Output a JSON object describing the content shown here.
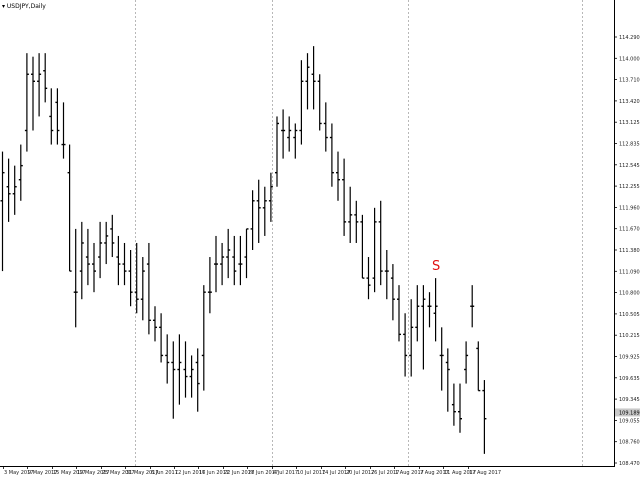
{
  "window": {
    "symbol_label": "▾ USDJPY,Daily"
  },
  "colors": {
    "background": "#ffffff",
    "bars": "#000000",
    "grid": "#b8b8b8",
    "annotation": "#e01010",
    "axis_text": "#222222",
    "price_tag_bg": "#c8c8c8"
  },
  "chart_data": {
    "type": "ohlc",
    "symbol": "USDJPY",
    "timeframe": "Daily",
    "ylim": [
      108.47,
      114.53
    ],
    "price_ticks": [
      "114.290",
      "114.000",
      "113.710",
      "113.420",
      "113.125",
      "112.835",
      "112.545",
      "112.255",
      "111.960",
      "111.670",
      "111.380",
      "111.090",
      "110.800",
      "110.505",
      "110.215",
      "109.925",
      "109.635",
      "109.345",
      "109.055",
      "108.760",
      "108.470"
    ],
    "current_price": "109.189",
    "date_ticks": [
      "3 May 2017",
      "9 May 2017",
      "15 May 2017",
      "19 May 2017",
      "25 May 2017",
      "31 May 2017",
      "6 Jun 2017",
      "12 Jun 2017",
      "16 Jun 2017",
      "22 Jun 2017",
      "28 Jun 2017",
      "4 Jul 2017",
      "10 Jul 2017",
      "14 Jul 2017",
      "20 Jul 2017",
      "26 Jul 2017",
      "1 Aug 2017",
      "7 Aug 2017",
      "11 Aug 2017",
      "17 Aug 2017"
    ],
    "grid": "vertical-dashed",
    "annotation": {
      "text": "S",
      "date": "8 Aug 2017"
    },
    "series": [
      {
        "date": "1 May 2017",
        "open": 112.2,
        "high": 112.9,
        "low": 111.2,
        "close": 112.6
      },
      {
        "date": "2 May 2017",
        "open": 112.4,
        "high": 112.8,
        "low": 111.9,
        "close": 112.3
      },
      {
        "date": "3 May 2017",
        "open": 112.3,
        "high": 112.7,
        "low": 112.0,
        "close": 112.4
      },
      {
        "date": "4 May 2017",
        "open": 112.5,
        "high": 113.0,
        "low": 112.2,
        "close": 112.7
      },
      {
        "date": "5 May 2017",
        "open": 113.2,
        "high": 114.3,
        "low": 112.9,
        "close": 114.0
      },
      {
        "date": "8 May 2017",
        "open": 114.0,
        "high": 114.25,
        "low": 113.2,
        "close": 113.9
      },
      {
        "date": "9 May 2017",
        "open": 113.9,
        "high": 114.3,
        "low": 113.4,
        "close": 114.0
      },
      {
        "date": "10 May 2017",
        "open": 114.05,
        "high": 114.3,
        "low": 113.6,
        "close": 113.8
      },
      {
        "date": "11 May 2017",
        "open": 113.4,
        "high": 113.8,
        "low": 113.0,
        "close": 113.2
      },
      {
        "date": "12 May 2017",
        "open": 113.6,
        "high": 113.8,
        "low": 113.0,
        "close": 113.2
      },
      {
        "date": "15 May 2017",
        "open": 113.0,
        "high": 113.6,
        "low": 112.8,
        "close": 113.0
      },
      {
        "date": "16 May 2017",
        "open": 112.6,
        "high": 113.0,
        "low": 111.2,
        "close": 111.2
      },
      {
        "date": "17 May 2017",
        "open": 110.9,
        "high": 111.8,
        "low": 110.4,
        "close": 110.9
      },
      {
        "date": "18 May 2017",
        "open": 111.2,
        "high": 111.9,
        "low": 110.8,
        "close": 111.6
      },
      {
        "date": "19 May 2017",
        "open": 111.4,
        "high": 111.8,
        "low": 111.0,
        "close": 111.3
      },
      {
        "date": "22 May 2017",
        "open": 111.3,
        "high": 111.6,
        "low": 110.9,
        "close": 111.2
      },
      {
        "date": "23 May 2017",
        "open": 111.4,
        "high": 111.9,
        "low": 111.1,
        "close": 111.6
      },
      {
        "date": "24 May 2017",
        "open": 111.6,
        "high": 111.9,
        "low": 111.3,
        "close": 111.7
      },
      {
        "date": "25 May 2017",
        "open": 111.8,
        "high": 112.0,
        "low": 111.4,
        "close": 111.6
      },
      {
        "date": "26 May 2017",
        "open": 111.4,
        "high": 111.7,
        "low": 111.0,
        "close": 111.3
      },
      {
        "date": "29 May 2017",
        "open": 111.3,
        "high": 111.6,
        "low": 111.0,
        "close": 111.2
      },
      {
        "date": "30 May 2017",
        "open": 111.2,
        "high": 111.5,
        "low": 110.7,
        "close": 110.9
      },
      {
        "date": "31 May 2017",
        "open": 110.9,
        "high": 111.6,
        "low": 110.6,
        "close": 110.8
      },
      {
        "date": "1 Jun 2017",
        "open": 110.8,
        "high": 111.4,
        "low": 110.5,
        "close": 111.2
      },
      {
        "date": "2 Jun 2017",
        "open": 111.3,
        "high": 111.6,
        "low": 110.3,
        "close": 110.5
      },
      {
        "date": "5 Jun 2017",
        "open": 110.5,
        "high": 110.7,
        "low": 110.2,
        "close": 110.4
      },
      {
        "date": "6 Jun 2017",
        "open": 110.4,
        "high": 110.6,
        "low": 109.9,
        "close": 110.0
      },
      {
        "date": "7 Jun 2017",
        "open": 110.0,
        "high": 110.3,
        "low": 109.6,
        "close": 109.9
      },
      {
        "date": "8 Jun 2017",
        "open": 109.9,
        "high": 110.2,
        "low": 109.1,
        "close": 109.8
      },
      {
        "date": "9 Jun 2017",
        "open": 109.8,
        "high": 110.3,
        "low": 109.3,
        "close": 109.9
      },
      {
        "date": "12 Jun 2017",
        "open": 109.8,
        "high": 110.2,
        "low": 109.4,
        "close": 109.7
      },
      {
        "date": "13 Jun 2017",
        "open": 109.7,
        "high": 110.0,
        "low": 109.4,
        "close": 109.8
      },
      {
        "date": "14 Jun 2017",
        "open": 109.9,
        "high": 110.1,
        "low": 109.2,
        "close": 109.6
      },
      {
        "date": "15 Jun 2017",
        "open": 110.0,
        "high": 111.0,
        "low": 109.5,
        "close": 110.9
      },
      {
        "date": "16 Jun 2017",
        "open": 110.9,
        "high": 111.4,
        "low": 110.6,
        "close": 110.9
      },
      {
        "date": "19 Jun 2017",
        "open": 111.3,
        "high": 111.7,
        "low": 110.9,
        "close": 111.3
      },
      {
        "date": "20 Jun 2017",
        "open": 111.3,
        "high": 111.6,
        "low": 111.0,
        "close": 111.4
      },
      {
        "date": "21 Jun 2017",
        "open": 111.4,
        "high": 111.8,
        "low": 111.1,
        "close": 111.5
      },
      {
        "date": "22 Jun 2017",
        "open": 111.4,
        "high": 111.7,
        "low": 111.0,
        "close": 111.2
      },
      {
        "date": "23 Jun 2017",
        "open": 111.3,
        "high": 111.7,
        "low": 111.0,
        "close": 111.3
      },
      {
        "date": "26 Jun 2017",
        "open": 111.4,
        "high": 111.8,
        "low": 111.1,
        "close": 111.8
      },
      {
        "date": "27 Jun 2017",
        "open": 111.8,
        "high": 112.35,
        "low": 111.5,
        "close": 112.2
      },
      {
        "date": "28 Jun 2017",
        "open": 112.2,
        "high": 112.5,
        "low": 111.6,
        "close": 112.1
      },
      {
        "date": "29 Jun 2017",
        "open": 112.1,
        "high": 112.4,
        "low": 111.7,
        "close": 112.2
      },
      {
        "date": "30 Jun 2017",
        "open": 112.2,
        "high": 112.6,
        "low": 111.9,
        "close": 112.4
      },
      {
        "date": "3 Jul 2017",
        "open": 112.6,
        "high": 113.4,
        "low": 112.4,
        "close": 113.3
      },
      {
        "date": "4 Jul 2017",
        "open": 113.2,
        "high": 113.5,
        "low": 112.8,
        "close": 113.2
      },
      {
        "date": "5 Jul 2017",
        "open": 113.1,
        "high": 113.4,
        "low": 112.9,
        "close": 113.2
      },
      {
        "date": "6 Jul 2017",
        "open": 113.1,
        "high": 113.3,
        "low": 112.8,
        "close": 113.2
      },
      {
        "date": "7 Jul 2017",
        "open": 113.2,
        "high": 114.2,
        "low": 113.0,
        "close": 113.9
      },
      {
        "date": "10 Jul 2017",
        "open": 113.9,
        "high": 114.3,
        "low": 113.5,
        "close": 114.1
      },
      {
        "date": "11 Jul 2017",
        "open": 114.0,
        "high": 114.4,
        "low": 113.5,
        "close": 113.9
      },
      {
        "date": "12 Jul 2017",
        "open": 113.9,
        "high": 114.0,
        "low": 113.2,
        "close": 113.3
      },
      {
        "date": "13 Jul 2017",
        "open": 113.3,
        "high": 113.6,
        "low": 112.9,
        "close": 113.1
      },
      {
        "date": "14 Jul 2017",
        "open": 113.1,
        "high": 113.3,
        "low": 112.4,
        "close": 112.6
      },
      {
        "date": "17 Jul 2017",
        "open": 112.6,
        "high": 112.9,
        "low": 112.2,
        "close": 112.5
      },
      {
        "date": "18 Jul 2017",
        "open": 112.5,
        "high": 112.8,
        "low": 111.7,
        "close": 111.9
      },
      {
        "date": "19 Jul 2017",
        "open": 111.9,
        "high": 112.4,
        "low": 111.6,
        "close": 112.0
      },
      {
        "date": "20 Jul 2017",
        "open": 112.0,
        "high": 112.2,
        "low": 111.6,
        "close": 111.9
      },
      {
        "date": "21 Jul 2017",
        "open": 111.9,
        "high": 112.0,
        "low": 111.1,
        "close": 111.1
      },
      {
        "date": "24 Jul 2017",
        "open": 111.1,
        "high": 111.4,
        "low": 110.8,
        "close": 111.0
      },
      {
        "date": "25 Jul 2017",
        "open": 111.1,
        "high": 112.1,
        "low": 110.9,
        "close": 111.9
      },
      {
        "date": "26 Jul 2017",
        "open": 111.9,
        "high": 112.2,
        "low": 111.0,
        "close": 111.2
      },
      {
        "date": "27 Jul 2017",
        "open": 111.2,
        "high": 111.5,
        "low": 110.8,
        "close": 111.2
      },
      {
        "date": "28 Jul 2017",
        "open": 111.1,
        "high": 111.3,
        "low": 110.5,
        "close": 110.8
      },
      {
        "date": "31 Jul 2017",
        "open": 110.8,
        "high": 111.0,
        "low": 110.2,
        "close": 110.3
      },
      {
        "date": "1 Aug 2017",
        "open": 110.3,
        "high": 110.6,
        "low": 109.7,
        "close": 110.0
      },
      {
        "date": "2 Aug 2017",
        "open": 110.0,
        "high": 110.8,
        "low": 109.7,
        "close": 110.4
      },
      {
        "date": "3 Aug 2017",
        "open": 110.4,
        "high": 111.0,
        "low": 110.2,
        "close": 110.7
      },
      {
        "date": "4 Aug 2017",
        "open": 110.7,
        "high": 111.0,
        "low": 109.8,
        "close": 110.8
      },
      {
        "date": "7 Aug 2017",
        "open": 110.7,
        "high": 110.9,
        "low": 110.4,
        "close": 110.7
      },
      {
        "date": "8 Aug 2017",
        "open": 110.6,
        "high": 111.1,
        "low": 110.2,
        "close": 110.7
      },
      {
        "date": "9 Aug 2017",
        "open": 110.0,
        "high": 110.4,
        "low": 109.5,
        "close": 110.0
      },
      {
        "date": "10 Aug 2017",
        "open": 109.9,
        "high": 110.1,
        "low": 109.2,
        "close": 109.8
      },
      {
        "date": "11 Aug 2017",
        "open": 109.3,
        "high": 109.6,
        "low": 109.0,
        "close": 109.2
      },
      {
        "date": "14 Aug 2017",
        "open": 109.2,
        "high": 109.6,
        "low": 108.9,
        "close": 109.1
      },
      {
        "date": "15 Aug 2017",
        "open": 109.8,
        "high": 110.2,
        "low": 109.6,
        "close": 110.0
      },
      {
        "date": "16 Aug 2017",
        "open": 110.7,
        "high": 111.0,
        "low": 110.4,
        "close": 110.7
      },
      {
        "date": "17 Aug 2017",
        "open": 110.1,
        "high": 110.2,
        "low": 109.5,
        "close": 109.5
      },
      {
        "date": "18 Aug 2017",
        "open": 109.5,
        "high": 109.65,
        "low": 108.6,
        "close": 109.1
      }
    ]
  }
}
